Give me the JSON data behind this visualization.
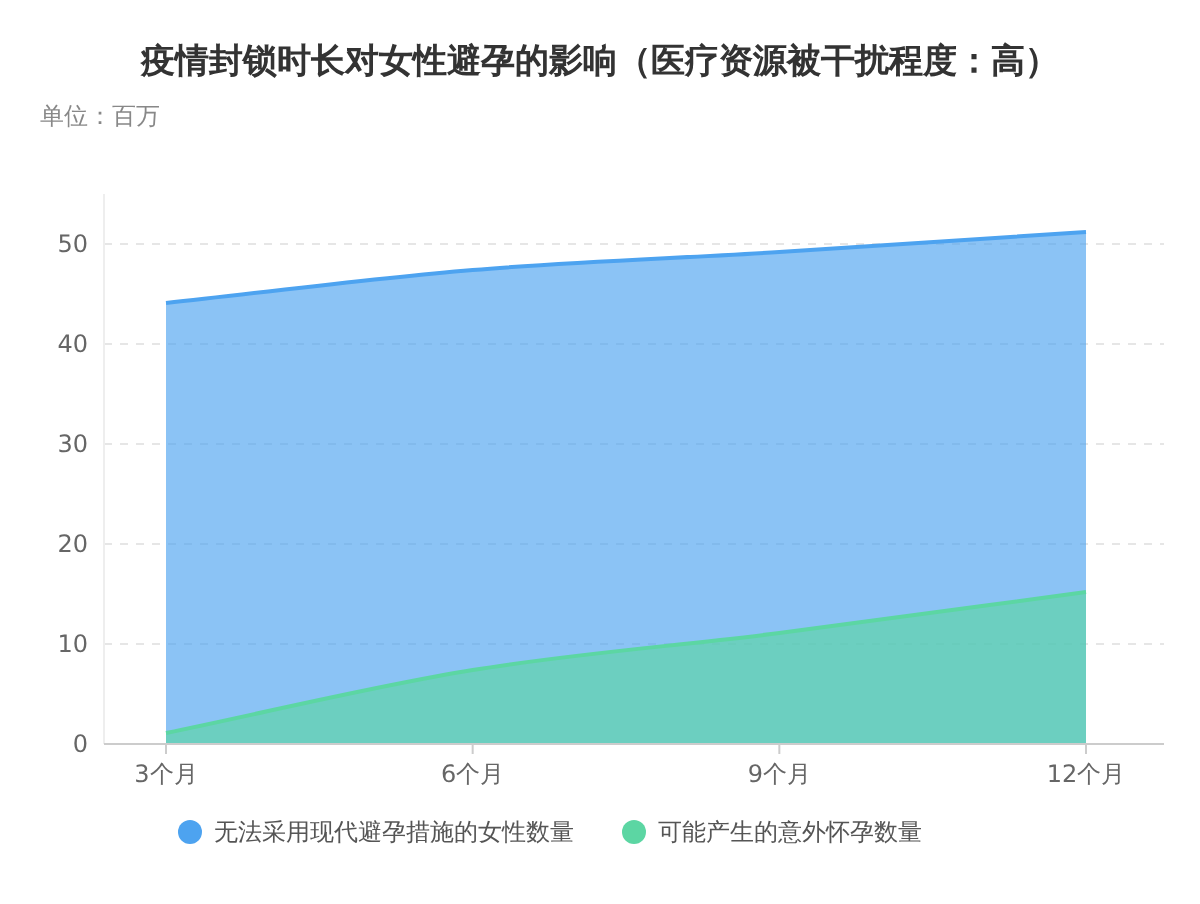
{
  "chart_data": {
    "type": "area",
    "title": "疫情封锁时长对女性避孕的影响（医疗资源被干扰程度：高）",
    "subtitle": "单位：百万",
    "categories": [
      "3个月",
      "6个月",
      "9个月",
      "12个月"
    ],
    "series": [
      {
        "name": "无法采用现代避孕措施的女性数量",
        "color": "#4da3f0",
        "values": [
          44.1,
          47.4,
          49.2,
          51.2
        ]
      },
      {
        "name": "可能产生的意外怀孕数量",
        "color": "#5cd6a3",
        "values": [
          1.1,
          7.4,
          11.1,
          15.2
        ]
      }
    ],
    "ylim": [
      0,
      55
    ],
    "yticks": [
      0,
      10,
      20,
      30,
      40,
      50
    ],
    "grid": "y",
    "legend": "bottom"
  }
}
